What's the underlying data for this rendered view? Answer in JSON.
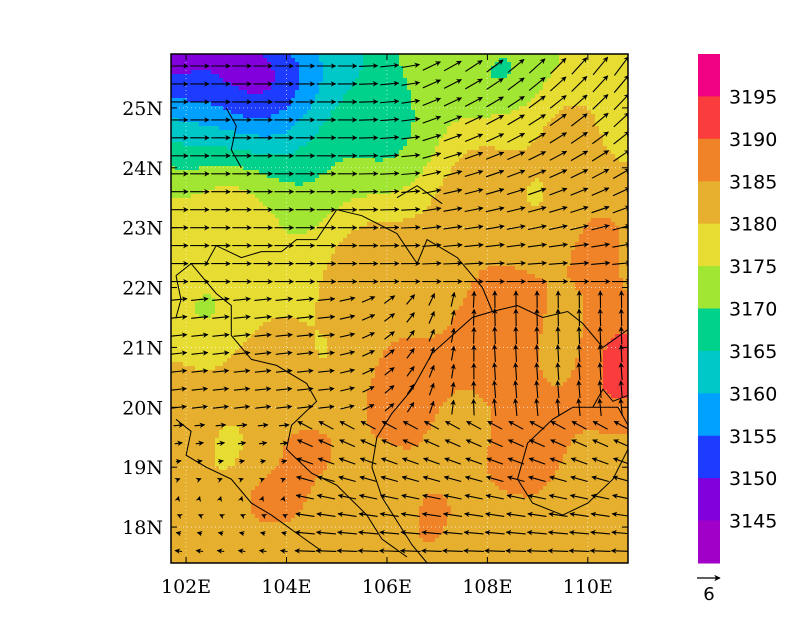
{
  "chart_data": {
    "type": "heatmap",
    "title": "",
    "xlabel": "",
    "ylabel": "",
    "xlim": [
      101.7,
      110.8
    ],
    "ylim": [
      17.4,
      25.9
    ],
    "x_ticks": [
      {
        "value": 102,
        "label": "102E"
      },
      {
        "value": 104,
        "label": "104E"
      },
      {
        "value": 106,
        "label": "106E"
      },
      {
        "value": 108,
        "label": "108E"
      },
      {
        "value": 110,
        "label": "110E"
      }
    ],
    "y_ticks": [
      {
        "value": 18,
        "label": "18N"
      },
      {
        "value": 19,
        "label": "19N"
      },
      {
        "value": 20,
        "label": "20N"
      },
      {
        "value": 21,
        "label": "21N"
      },
      {
        "value": 22,
        "label": "22N"
      },
      {
        "value": 23,
        "label": "23N"
      },
      {
        "value": 24,
        "label": "24N"
      },
      {
        "value": 25,
        "label": "25N"
      }
    ],
    "colorbar": {
      "levels": [
        3145,
        3150,
        3155,
        3160,
        3165,
        3170,
        3175,
        3180,
        3185,
        3190,
        3195
      ],
      "labels": [
        "3145",
        "3150",
        "3155",
        "3160",
        "3165",
        "3170",
        "3175",
        "3180",
        "3185",
        "3190",
        "3195"
      ],
      "colors": [
        "#a000c8",
        "#8200dc",
        "#1e3cff",
        "#00a0ff",
        "#00c8c8",
        "#00d28c",
        "#a0e632",
        "#e6dc32",
        "#e6af2d",
        "#f08228",
        "#fa3c3c",
        "#f00082"
      ]
    },
    "vector_reference": {
      "magnitude": 6,
      "label": "6"
    },
    "grid": true,
    "grid_style": "dotted",
    "features": [
      "coastlines",
      "country-borders",
      "wind-vectors",
      "filled-contours"
    ]
  }
}
